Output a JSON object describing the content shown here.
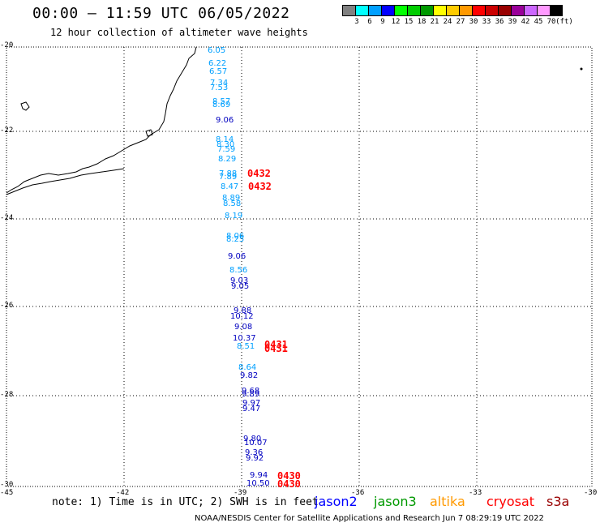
{
  "title": "00:00 – 11:59 UTC 06/05/2022",
  "subtitle": "12 hour collection of altimeter wave heights",
  "colorbar": {
    "colors": [
      "#808080",
      "#00ffff",
      "#00a0ff",
      "#0000ff",
      "#00ff00",
      "#00cc00",
      "#009900",
      "#ffff00",
      "#ffcc00",
      "#ff9900",
      "#ff0000",
      "#cc0000",
      "#990000",
      "#990099",
      "#cc66ff",
      "#ff99ff",
      "#000000"
    ],
    "ticks": [
      "3",
      "6",
      "9",
      "12",
      "15",
      "18",
      "21",
      "24",
      "27",
      "30",
      "33",
      "36",
      "39",
      "42",
      "45",
      "70",
      "(ft)"
    ]
  },
  "axes": {
    "lat_labels": [
      "-20",
      "-22",
      "-24",
      "-26",
      "-28",
      "-30"
    ],
    "lon_labels": [
      "-45",
      "-42",
      "-39",
      "-36",
      "-33",
      "-30"
    ]
  },
  "observations": [
    {
      "v": "6.05",
      "c": "#00a0ff"
    },
    {
      "v": "6.22",
      "c": "#00a0ff"
    },
    {
      "v": "6.57",
      "c": "#00a0ff"
    },
    {
      "v": "7.34",
      "c": "#00a0ff"
    },
    {
      "v": "7.53",
      "c": "#00a0ff"
    },
    {
      "v": "8.57",
      "c": "#00a0ff"
    },
    {
      "v": "8.69",
      "c": "#00a0ff"
    },
    {
      "v": "9.06",
      "c": "#0000c0"
    },
    {
      "v": "8.14",
      "c": "#00a0ff"
    },
    {
      "v": "8.30",
      "c": "#00a0ff"
    },
    {
      "v": "7.59",
      "c": "#00a0ff"
    },
    {
      "v": "8.29",
      "c": "#00a0ff"
    },
    {
      "v": "7.88",
      "c": "#00a0ff"
    },
    {
      "v": "7.89",
      "c": "#00a0ff"
    },
    {
      "v": "8.47",
      "c": "#00a0ff"
    },
    {
      "v": "8.89",
      "c": "#00a0ff"
    },
    {
      "v": "8.58",
      "c": "#00a0ff"
    },
    {
      "v": "8.19",
      "c": "#00a0ff"
    },
    {
      "v": "8.06",
      "c": "#00a0ff"
    },
    {
      "v": "8.25",
      "c": "#00a0ff"
    },
    {
      "v": "9.06",
      "c": "#0000c0"
    },
    {
      "v": "8.56",
      "c": "#00a0ff"
    },
    {
      "v": "9.03",
      "c": "#0000c0"
    },
    {
      "v": "9.05",
      "c": "#0000c0"
    },
    {
      "v": "9.88",
      "c": "#0000c0"
    },
    {
      "v": "10.12",
      "c": "#0000c0"
    },
    {
      "v": "9.08",
      "c": "#0000c0"
    },
    {
      "v": "10.37",
      "c": "#0000c0"
    },
    {
      "v": "8.51",
      "c": "#00a0ff"
    },
    {
      "v": "8.64",
      "c": "#00a0ff"
    },
    {
      "v": "9.82",
      "c": "#0000c0"
    },
    {
      "v": "9.68",
      "c": "#0000c0"
    },
    {
      "v": "9.89",
      "c": "#0000c0"
    },
    {
      "v": "9.97",
      "c": "#0000c0"
    },
    {
      "v": "9.47",
      "c": "#0000c0"
    },
    {
      "v": "9.80",
      "c": "#0000c0"
    },
    {
      "v": "10.07",
      "c": "#0000c0"
    },
    {
      "v": "9.36",
      "c": "#0000c0"
    },
    {
      "v": "9.92",
      "c": "#0000c0"
    },
    {
      "v": "9.94",
      "c": "#0000c0"
    },
    {
      "v": "10.50",
      "c": "#0000c0"
    }
  ],
  "pass_times": [
    "0432",
    "0432",
    "0431",
    "0431",
    "0430",
    "0430"
  ],
  "note": "note: 1) Time is in UTC; 2) SWH is in feet",
  "legend": [
    {
      "label": "jason2",
      "color": "#0000ff"
    },
    {
      "label": "jason3",
      "color": "#009900"
    },
    {
      "label": "altika",
      "color": "#ff9900"
    },
    {
      "label": "cryosat",
      "color": "#ff0000"
    },
    {
      "label": "s3a",
      "color": "#990000"
    }
  ],
  "footer": "NOAA/NESDIS Center for Satellite Applications and Research   Jun  7 08:29:19 UTC 2022"
}
